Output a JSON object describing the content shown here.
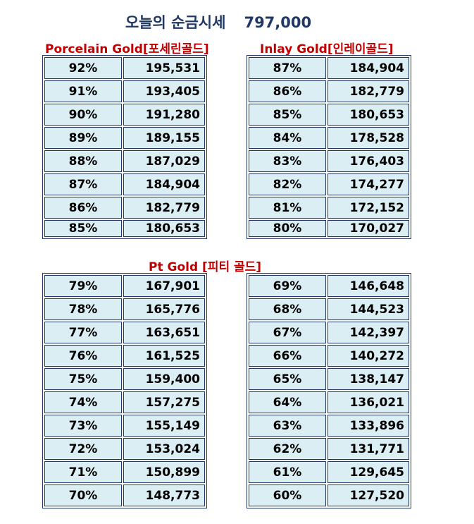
{
  "title": {
    "label": "오늘의 순금시세",
    "price": "797,000"
  },
  "sections": {
    "porcelain": "Porcelain Gold[포세린골드]",
    "inlay": "Inlay Gold[인레이골드]",
    "pt": "Pt Gold [피티 골드]"
  },
  "tables": {
    "porcelain": [
      {
        "pct": "92%",
        "val": "195,531"
      },
      {
        "pct": "91%",
        "val": "193,405"
      },
      {
        "pct": "90%",
        "val": "191,280"
      },
      {
        "pct": "89%",
        "val": "189,155"
      },
      {
        "pct": "88%",
        "val": "187,029"
      },
      {
        "pct": "87%",
        "val": "184,904"
      },
      {
        "pct": "86%",
        "val": "182,779"
      },
      {
        "pct": "85%",
        "val": "180,653"
      }
    ],
    "inlay": [
      {
        "pct": "87%",
        "val": "184,904"
      },
      {
        "pct": "86%",
        "val": "182,779"
      },
      {
        "pct": "85%",
        "val": "180,653"
      },
      {
        "pct": "84%",
        "val": "178,528"
      },
      {
        "pct": "83%",
        "val": "176,403"
      },
      {
        "pct": "82%",
        "val": "174,277"
      },
      {
        "pct": "81%",
        "val": "172,152"
      },
      {
        "pct": "80%",
        "val": "170,027"
      }
    ],
    "pt_left": [
      {
        "pct": "79%",
        "val": "167,901"
      },
      {
        "pct": "78%",
        "val": "165,776"
      },
      {
        "pct": "77%",
        "val": "163,651"
      },
      {
        "pct": "76%",
        "val": "161,525"
      },
      {
        "pct": "75%",
        "val": "159,400"
      },
      {
        "pct": "74%",
        "val": "157,275"
      },
      {
        "pct": "73%",
        "val": "155,149"
      },
      {
        "pct": "72%",
        "val": "153,024"
      },
      {
        "pct": "71%",
        "val": "150,899"
      },
      {
        "pct": "70%",
        "val": "148,773"
      }
    ],
    "pt_right": [
      {
        "pct": "69%",
        "val": "146,648"
      },
      {
        "pct": "68%",
        "val": "144,523"
      },
      {
        "pct": "67%",
        "val": "142,397"
      },
      {
        "pct": "66%",
        "val": "140,272"
      },
      {
        "pct": "65%",
        "val": "138,147"
      },
      {
        "pct": "64%",
        "val": "136,021"
      },
      {
        "pct": "63%",
        "val": "133,896"
      },
      {
        "pct": "62%",
        "val": "131,771"
      },
      {
        "pct": "61%",
        "val": "129,645"
      },
      {
        "pct": "60%",
        "val": "127,520"
      }
    ]
  },
  "colors": {
    "title": "#1f3864",
    "section": "#c00000",
    "cell_bg": "#daeef3",
    "border": "#1f3864"
  }
}
